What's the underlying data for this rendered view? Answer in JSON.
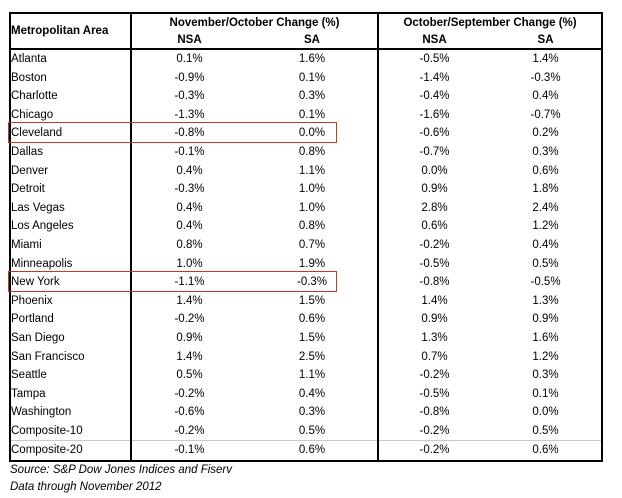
{
  "table": {
    "area_header": "Metropolitan Area",
    "group_headers": {
      "nov_oct": "November/October Change (%)",
      "oct_sep": "October/September Change (%)"
    },
    "sub_headers": [
      "NSA",
      "SA",
      "NSA",
      "SA"
    ],
    "rows": [
      {
        "area": "Atlanta",
        "values": [
          "0.1%",
          "1.6%",
          "-0.5%",
          "1.4%"
        ],
        "highlighted": false
      },
      {
        "area": "Boston",
        "values": [
          "-0.9%",
          "0.1%",
          "-1.4%",
          "-0.3%"
        ],
        "highlighted": false
      },
      {
        "area": "Charlotte",
        "values": [
          "-0.3%",
          "0.3%",
          "-0.4%",
          "0.4%"
        ],
        "highlighted": false
      },
      {
        "area": "Chicago",
        "values": [
          "-1.3%",
          "0.1%",
          "-1.6%",
          "-0.7%"
        ],
        "highlighted": false
      },
      {
        "area": "Cleveland",
        "values": [
          "-0.8%",
          "0.0%",
          "-0.6%",
          "0.2%"
        ],
        "highlighted": true
      },
      {
        "area": "Dallas",
        "values": [
          "-0.1%",
          "0.8%",
          "-0.7%",
          "0.3%"
        ],
        "highlighted": false
      },
      {
        "area": "Denver",
        "values": [
          "0.4%",
          "1.1%",
          "0.0%",
          "0.6%"
        ],
        "highlighted": false
      },
      {
        "area": "Detroit",
        "values": [
          "-0.3%",
          "1.0%",
          "0.9%",
          "1.8%"
        ],
        "highlighted": false
      },
      {
        "area": "Las Vegas",
        "values": [
          "0.4%",
          "1.0%",
          "2.8%",
          "2.4%"
        ],
        "highlighted": false
      },
      {
        "area": "Los Angeles",
        "values": [
          "0.4%",
          "0.8%",
          "0.6%",
          "1.2%"
        ],
        "highlighted": false
      },
      {
        "area": "Miami",
        "values": [
          "0.8%",
          "0.7%",
          "-0.2%",
          "0.4%"
        ],
        "highlighted": false
      },
      {
        "area": "Minneapolis",
        "values": [
          "1.0%",
          "1.9%",
          "-0.5%",
          "0.5%"
        ],
        "highlighted": false
      },
      {
        "area": "New York",
        "values": [
          "-1.1%",
          "-0.3%",
          "-0.8%",
          "-0.5%"
        ],
        "highlighted": true
      },
      {
        "area": "Phoenix",
        "values": [
          "1.4%",
          "1.5%",
          "1.4%",
          "1.3%"
        ],
        "highlighted": false
      },
      {
        "area": "Portland",
        "values": [
          "-0.2%",
          "0.6%",
          "0.9%",
          "0.9%"
        ],
        "highlighted": false
      },
      {
        "area": "San Diego",
        "values": [
          "0.9%",
          "1.5%",
          "1.3%",
          "1.6%"
        ],
        "highlighted": false
      },
      {
        "area": "San Francisco",
        "values": [
          "1.4%",
          "2.5%",
          "0.7%",
          "1.2%"
        ],
        "highlighted": false
      },
      {
        "area": "Seattle",
        "values": [
          "0.5%",
          "1.1%",
          "-0.2%",
          "0.3%"
        ],
        "highlighted": false
      },
      {
        "area": "Tampa",
        "values": [
          "-0.2%",
          "0.4%",
          "-0.5%",
          "0.1%"
        ],
        "highlighted": false
      },
      {
        "area": "Washington",
        "values": [
          "-0.6%",
          "0.3%",
          "-0.8%",
          "0.0%"
        ],
        "highlighted": false
      },
      {
        "area": "Composite-10",
        "values": [
          "-0.2%",
          "0.5%",
          "-0.2%",
          "0.5%"
        ],
        "highlighted": false
      },
      {
        "area": "Composite-20",
        "values": [
          "-0.1%",
          "0.6%",
          "-0.2%",
          "0.6%"
        ],
        "highlighted": false
      }
    ]
  },
  "footer": {
    "source_line": "Source: S&P Dow Jones Indices and Fiserv",
    "data_line": "Data through November 2012"
  },
  "colors": {
    "highlight_border": "#c0392b",
    "table_border": "#000000"
  }
}
